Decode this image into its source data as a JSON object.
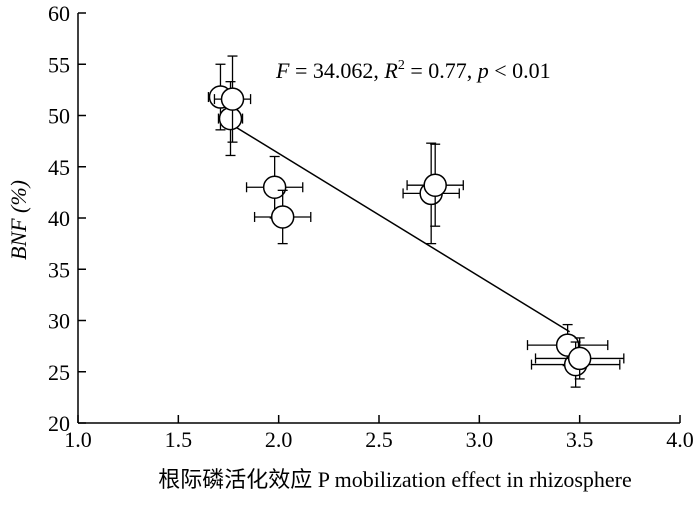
{
  "chart_data": {
    "type": "scatter",
    "title": "",
    "xlabel": "根际磷活化效应 P mobilization effect in rhizosphere",
    "ylabel": "BNF (%)",
    "xlim": [
      1.0,
      4.0
    ],
    "ylim": [
      20,
      60
    ],
    "x_ticks": [
      "1.0",
      "1.5",
      "2.0",
      "2.5",
      "3.0",
      "3.5",
      "4.0"
    ],
    "y_ticks": [
      "20",
      "25",
      "30",
      "35",
      "40",
      "45",
      "50",
      "55",
      "60"
    ],
    "grid": false,
    "legend": "none",
    "points": [
      {
        "x": 1.71,
        "y": 51.8,
        "xerr": 0.06,
        "yerr": 3.2
      },
      {
        "x": 1.76,
        "y": 49.7,
        "xerr": 0.06,
        "yerr": 3.6
      },
      {
        "x": 1.77,
        "y": 51.6,
        "xerr": 0.09,
        "yerr": 4.2
      },
      {
        "x": 1.98,
        "y": 43.0,
        "xerr": 0.14,
        "yerr": 3.0
      },
      {
        "x": 2.02,
        "y": 40.1,
        "xerr": 0.14,
        "yerr": 2.6
      },
      {
        "x": 2.76,
        "y": 42.4,
        "xerr": 0.14,
        "yerr": 4.9
      },
      {
        "x": 2.78,
        "y": 43.2,
        "xerr": 0.14,
        "yerr": 4.0
      },
      {
        "x": 3.44,
        "y": 27.6,
        "xerr": 0.2,
        "yerr": 2.0
      },
      {
        "x": 3.48,
        "y": 25.7,
        "xerr": 0.22,
        "yerr": 2.2
      },
      {
        "x": 3.5,
        "y": 26.3,
        "xerr": 0.22,
        "yerr": 2.0
      }
    ],
    "fit_line": {
      "x": [
        1.75,
        3.45
      ],
      "y": [
        49.3,
        28.9
      ]
    },
    "annotation": {
      "F_symbol": "F",
      "F_text": " = 34.062, ",
      "R_symbol": "R",
      "R_sup": "2",
      "R_text": " = 0.77, ",
      "p_symbol": "p",
      "p_text": " < 0.01"
    }
  }
}
